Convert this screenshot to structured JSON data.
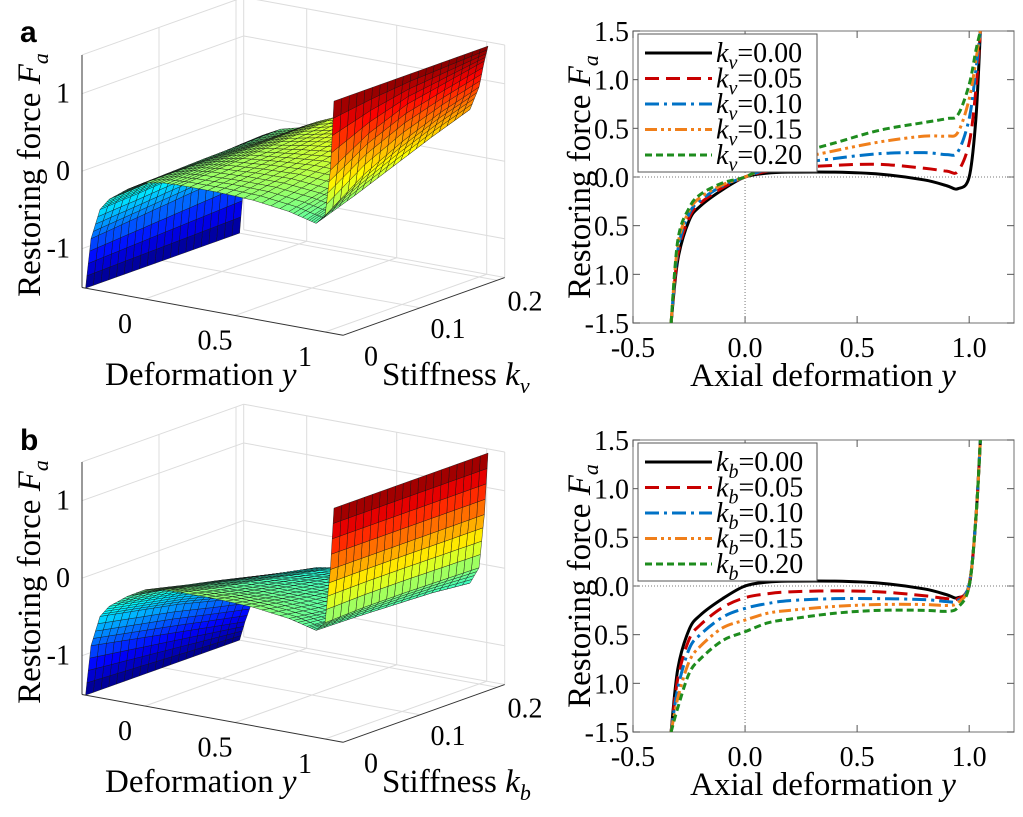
{
  "figure": {
    "panel_labels": [
      "a",
      "b"
    ]
  },
  "chart_data": [
    {
      "type": "surface",
      "panel": "a",
      "zlabel": {
        "text": "Restoring force ",
        "var": "F",
        "sub": "a"
      },
      "xlabel": {
        "text": "Deformation ",
        "var": "y"
      },
      "ylabel": {
        "text": "Stiffness ",
        "var": "k",
        "sub": "v"
      },
      "z_ticks": [
        "1",
        "0",
        "-1"
      ],
      "x_ticks": [
        "0",
        "0.5",
        "1"
      ],
      "y_ticks": [
        "0",
        "0.1",
        "0.2"
      ],
      "zlim": [
        -1.5,
        1.5
      ],
      "colormap": "jet",
      "grid": true
    },
    {
      "type": "line",
      "panel": "a",
      "xlabel": {
        "text": "Axial deformation ",
        "var": "y"
      },
      "ylabel": {
        "text": "Restoring force ",
        "var": "F",
        "sub": "a"
      },
      "xlim": [
        -0.5,
        1.2
      ],
      "ylim": [
        -1.5,
        1.5
      ],
      "x_ticks": [
        "-0.5",
        "0.0",
        "0.5",
        "1.0"
      ],
      "y_ticks": [
        "1.5",
        "1.0",
        "0.5",
        "0.0",
        "0.5",
        "1.0",
        "-1.5"
      ],
      "legend_position": "top-left",
      "x": [
        -0.33,
        -0.3,
        -0.25,
        -0.2,
        -0.1,
        0,
        0.1,
        0.2,
        0.4,
        0.6,
        0.8,
        0.9,
        0.95,
        1.0,
        1.03,
        1.05
      ],
      "series": [
        {
          "var": "k",
          "sub": "v",
          "value": "=0.00",
          "k": 0.0,
          "color": "#000000",
          "dash": "solid",
          "values": [
            -1.5,
            -0.85,
            -0.45,
            -0.3,
            -0.13,
            0,
            0.04,
            0.05,
            0.05,
            0.03,
            -0.03,
            -0.09,
            -0.12,
            0.0,
            0.6,
            1.5
          ]
        },
        {
          "var": "k",
          "sub": "v",
          "value": "=0.05",
          "k": 0.05,
          "color": "#c80000",
          "dash": "dashed",
          "values": [
            -1.5,
            -0.8,
            -0.42,
            -0.27,
            -0.11,
            0,
            0.06,
            0.09,
            0.12,
            0.13,
            0.09,
            0.06,
            0.06,
            0.35,
            0.9,
            1.5
          ]
        },
        {
          "var": "k",
          "sub": "v",
          "value": "=0.10",
          "k": 0.1,
          "color": "#0072c6",
          "dash": "dash-dot",
          "values": [
            -1.5,
            -0.75,
            -0.38,
            -0.24,
            -0.09,
            0,
            0.08,
            0.13,
            0.19,
            0.24,
            0.25,
            0.23,
            0.26,
            0.6,
            1.1,
            1.5
          ]
        },
        {
          "var": "k",
          "sub": "v",
          "value": "=0.15",
          "k": 0.15,
          "color": "#f07f1a",
          "dash": "dash-dot-dot",
          "values": [
            -1.5,
            -0.7,
            -0.35,
            -0.21,
            -0.08,
            0,
            0.1,
            0.17,
            0.27,
            0.36,
            0.42,
            0.42,
            0.46,
            0.8,
            1.2,
            1.5
          ]
        },
        {
          "var": "k",
          "sub": "v",
          "value": "=0.20",
          "k": 0.2,
          "color": "#1e8c1e",
          "dash": "short-dashed",
          "values": [
            -1.5,
            -0.65,
            -0.32,
            -0.18,
            -0.06,
            0,
            0.12,
            0.22,
            0.35,
            0.48,
            0.56,
            0.6,
            0.64,
            0.95,
            1.3,
            1.5
          ]
        }
      ]
    },
    {
      "type": "surface",
      "panel": "b",
      "zlabel": {
        "text": "Restoring force ",
        "var": "F",
        "sub": "a"
      },
      "xlabel": {
        "text": "Deformation ",
        "var": "y"
      },
      "ylabel": {
        "text": "Stiffness ",
        "var": "k",
        "sub": "b"
      },
      "z_ticks": [
        "1",
        "0",
        "-1"
      ],
      "x_ticks": [
        "0",
        "0.5",
        "1"
      ],
      "y_ticks": [
        "0",
        "0.1",
        "0.2"
      ],
      "zlim": [
        -1.5,
        1.5
      ],
      "colormap": "jet",
      "grid": true
    },
    {
      "type": "line",
      "panel": "b",
      "xlabel": {
        "text": "Axial deformation  ",
        "var": "y"
      },
      "ylabel": {
        "text": "Restoring force ",
        "var": "F",
        "sub": "a"
      },
      "xlim": [
        -0.5,
        1.2
      ],
      "ylim": [
        -1.5,
        1.5
      ],
      "x_ticks": [
        "-0.5",
        "0.0",
        "0.5",
        "1.0"
      ],
      "y_ticks": [
        "1.5",
        "1.0",
        "0.5",
        "0.0",
        "0.5",
        "1.0",
        "-1.5"
      ],
      "legend_position": "top-left",
      "x": [
        -0.33,
        -0.3,
        -0.25,
        -0.2,
        -0.1,
        0,
        0.1,
        0.2,
        0.4,
        0.6,
        0.8,
        0.9,
        0.95,
        1.0,
        1.03,
        1.05
      ],
      "series": [
        {
          "var": "k",
          "sub": "b",
          "value": "=0.00",
          "k": 0.0,
          "color": "#000000",
          "dash": "solid",
          "values": [
            -1.5,
            -0.85,
            -0.45,
            -0.3,
            -0.13,
            0,
            0.04,
            0.05,
            0.05,
            0.03,
            -0.03,
            -0.09,
            -0.12,
            0.0,
            0.7,
            1.5
          ]
        },
        {
          "var": "k",
          "sub": "b",
          "value": "=0.05",
          "k": 0.05,
          "color": "#c80000",
          "dash": "dashed",
          "values": [
            -1.5,
            -0.95,
            -0.55,
            -0.4,
            -0.22,
            -0.12,
            -0.08,
            -0.06,
            -0.05,
            -0.06,
            -0.1,
            -0.13,
            -0.13,
            0.02,
            0.7,
            1.5
          ]
        },
        {
          "var": "k",
          "sub": "b",
          "value": "=0.10",
          "k": 0.1,
          "color": "#0072c6",
          "dash": "dash-dot",
          "values": [
            -1.5,
            -1.05,
            -0.65,
            -0.5,
            -0.32,
            -0.23,
            -0.18,
            -0.15,
            -0.13,
            -0.13,
            -0.14,
            -0.16,
            -0.15,
            0.02,
            0.7,
            1.5
          ]
        },
        {
          "var": "k",
          "sub": "b",
          "value": "=0.15",
          "k": 0.15,
          "color": "#f07f1a",
          "dash": "dash-dot-dot",
          "values": [
            -1.5,
            -1.15,
            -0.78,
            -0.62,
            -0.43,
            -0.35,
            -0.28,
            -0.25,
            -0.21,
            -0.19,
            -0.19,
            -0.2,
            -0.17,
            0.01,
            0.7,
            1.5
          ]
        },
        {
          "var": "k",
          "sub": "b",
          "value": "=0.20",
          "k": 0.2,
          "color": "#1e8c1e",
          "dash": "short-dashed",
          "values": [
            -1.5,
            -1.25,
            -0.9,
            -0.75,
            -0.56,
            -0.47,
            -0.38,
            -0.34,
            -0.28,
            -0.25,
            -0.25,
            -0.26,
            -0.22,
            0.0,
            0.7,
            1.5
          ]
        }
      ]
    }
  ]
}
